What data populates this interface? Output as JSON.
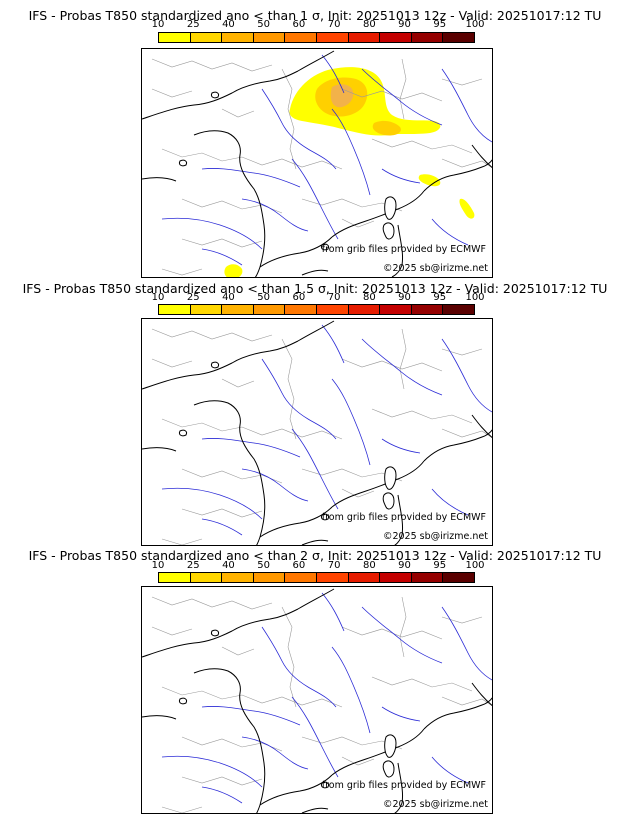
{
  "panels": [
    {
      "title": "IFS - Probas T850  standardized ano < than 1 σ, Init: 20251013 12z - Valid: 20251017:12 TU",
      "source_credit": "from grib files provided by ECMWF",
      "copyright": "©2025 sb@irizme.net"
    },
    {
      "title": "IFS - Probas T850  standardized ano < than 1.5 σ, Init: 20251013 12z - Valid: 20251017:12 TU",
      "source_credit": "from grib files provided by ECMWF",
      "copyright": "©2025 sb@irizme.net"
    },
    {
      "title": "IFS - Probas T850  standardized ano < than 2 σ, Init: 20251013 12z - Valid: 20251017:12 TU",
      "source_credit": "from grib files provided by ECMWF",
      "copyright": "©2025 sb@irizme.net"
    }
  ],
  "colorbar": {
    "ticks": [
      "10",
      "25",
      "40",
      "50",
      "60",
      "70",
      "80",
      "90",
      "95",
      "100"
    ],
    "colors": [
      "#ffff00",
      "#ffd700",
      "#ffb300",
      "#ff9900",
      "#ff7700",
      "#ff4400",
      "#e61c00",
      "#c40000",
      "#950000",
      "#5a0000"
    ]
  },
  "map_colors": {
    "coast": "#000000",
    "rivers": "#2b2bd6",
    "borders": "#9a9a9a",
    "prob_low": "#ffff00",
    "prob_mid": "#ffd000",
    "prob_high": "#f2b24a"
  }
}
